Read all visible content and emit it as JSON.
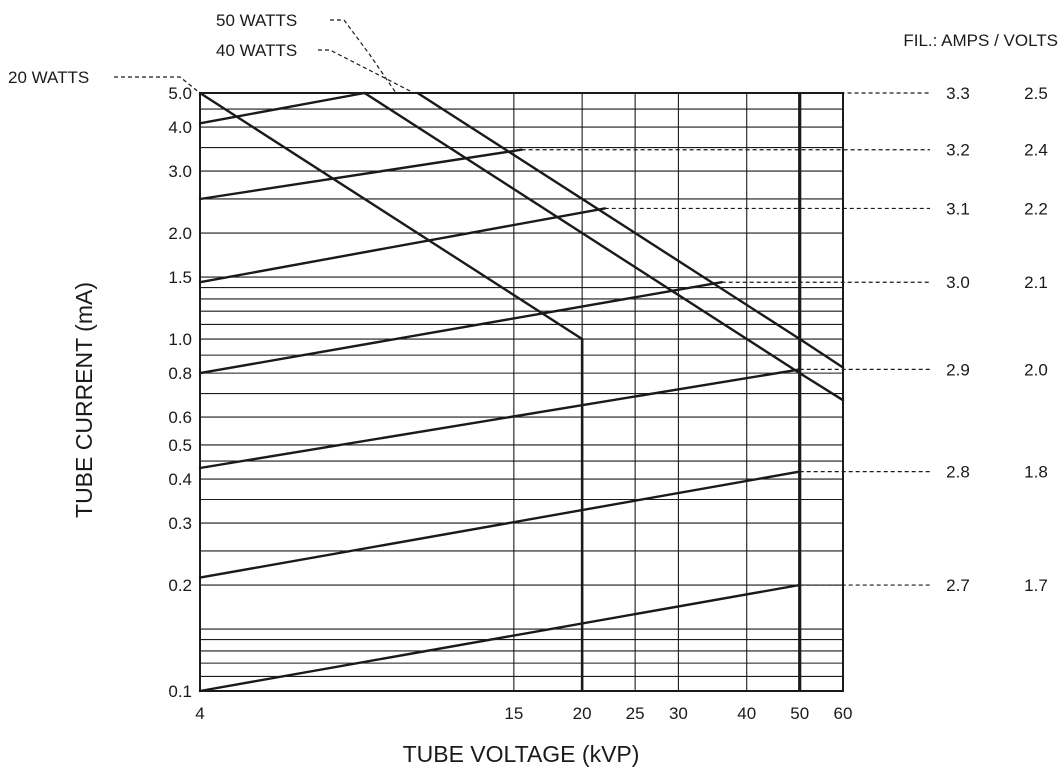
{
  "chart_data": {
    "type": "line",
    "title": "",
    "xlabel": "TUBE VOLTAGE (kVP)",
    "ylabel": "TUBE CURRENT (mA)",
    "x_scale": "log",
    "y_scale": "log",
    "xlim": [
      4,
      60
    ],
    "ylim": [
      0.1,
      5.0
    ],
    "grid": true,
    "x_tick_labels": [
      {
        "value": 4,
        "label": "4"
      },
      {
        "value": 15,
        "label": "15"
      },
      {
        "value": 20,
        "label": "20"
      },
      {
        "value": 25,
        "label": "25"
      },
      {
        "value": 30,
        "label": "30"
      },
      {
        "value": 40,
        "label": "40"
      },
      {
        "value": 50,
        "label": "50"
      },
      {
        "value": 60,
        "label": "60"
      }
    ],
    "x_gridlines": [
      15,
      20,
      25,
      30,
      40,
      50
    ],
    "y_tick_labels": [
      {
        "value": 0.1,
        "label": "0.1"
      },
      {
        "value": 0.2,
        "label": "0.2"
      },
      {
        "value": 0.3,
        "label": "0.3"
      },
      {
        "value": 0.4,
        "label": "0.4"
      },
      {
        "value": 0.5,
        "label": "0.5"
      },
      {
        "value": 0.6,
        "label": "0.6"
      },
      {
        "value": 0.8,
        "label": "0.8"
      },
      {
        "value": 1.0,
        "label": "1.0"
      },
      {
        "value": 1.5,
        "label": "1.5"
      },
      {
        "value": 2.0,
        "label": "2.0"
      },
      {
        "value": 3.0,
        "label": "3.0"
      },
      {
        "value": 4.0,
        "label": "4.0"
      },
      {
        "value": 5.0,
        "label": "5.0"
      }
    ],
    "y_gridlines": [
      0.11,
      0.12,
      0.13,
      0.14,
      0.15,
      0.2,
      0.25,
      0.3,
      0.35,
      0.4,
      0.45,
      0.5,
      0.6,
      0.7,
      0.8,
      0.9,
      1.0,
      1.1,
      1.2,
      1.3,
      1.4,
      1.5,
      2.0,
      2.5,
      3.0,
      3.5,
      4.0,
      4.5,
      5.0
    ],
    "power_limits": [
      {
        "name": "20 WATTS",
        "points": [
          {
            "x": 4,
            "y": 5.0
          },
          {
            "x": 20,
            "y": 1.0
          }
        ],
        "vertical_to": {
          "x": 20,
          "y": 0.1
        }
      },
      {
        "name": "40 WATTS",
        "points": [
          {
            "x": 8.0,
            "y": 5.0
          },
          {
            "x": 50,
            "y": 0.8
          },
          {
            "x": 60,
            "y": 0.67
          }
        ]
      },
      {
        "name": "50 WATTS",
        "points": [
          {
            "x": 10.0,
            "y": 5.0
          },
          {
            "x": 50,
            "y": 1.0
          },
          {
            "x": 60,
            "y": 0.83
          }
        ]
      }
    ],
    "emission_lines": [
      {
        "amps": "2.7",
        "volts": "1.7",
        "points": [
          {
            "x": 4,
            "y": 0.1
          },
          {
            "x": 50,
            "y": 0.2
          }
        ]
      },
      {
        "amps": "2.8",
        "volts": "1.8",
        "points": [
          {
            "x": 4,
            "y": 0.21
          },
          {
            "x": 50,
            "y": 0.42
          }
        ]
      },
      {
        "amps": "2.9",
        "volts": "2.0",
        "points": [
          {
            "x": 4,
            "y": 0.43
          },
          {
            "x": 50,
            "y": 0.82
          }
        ]
      },
      {
        "amps": "3.0",
        "volts": "2.1",
        "points": [
          {
            "x": 4,
            "y": 0.8
          },
          {
            "x": 36,
            "y": 1.45
          }
        ]
      },
      {
        "amps": "3.1",
        "volts": "2.2",
        "points": [
          {
            "x": 4,
            "y": 1.45
          },
          {
            "x": 22,
            "y": 2.35
          }
        ]
      },
      {
        "amps": "3.2",
        "volts": "2.4",
        "points": [
          {
            "x": 4,
            "y": 2.5
          },
          {
            "x": 15.5,
            "y": 3.45
          }
        ]
      },
      {
        "amps": "3.3",
        "volts": "2.5",
        "points": [
          {
            "x": 4,
            "y": 4.1
          },
          {
            "x": 8.0,
            "y": 5.0
          }
        ]
      }
    ],
    "operating_boundary": {
      "x": 50
    }
  },
  "filament_header": "FIL.:  AMPS / VOLTS"
}
